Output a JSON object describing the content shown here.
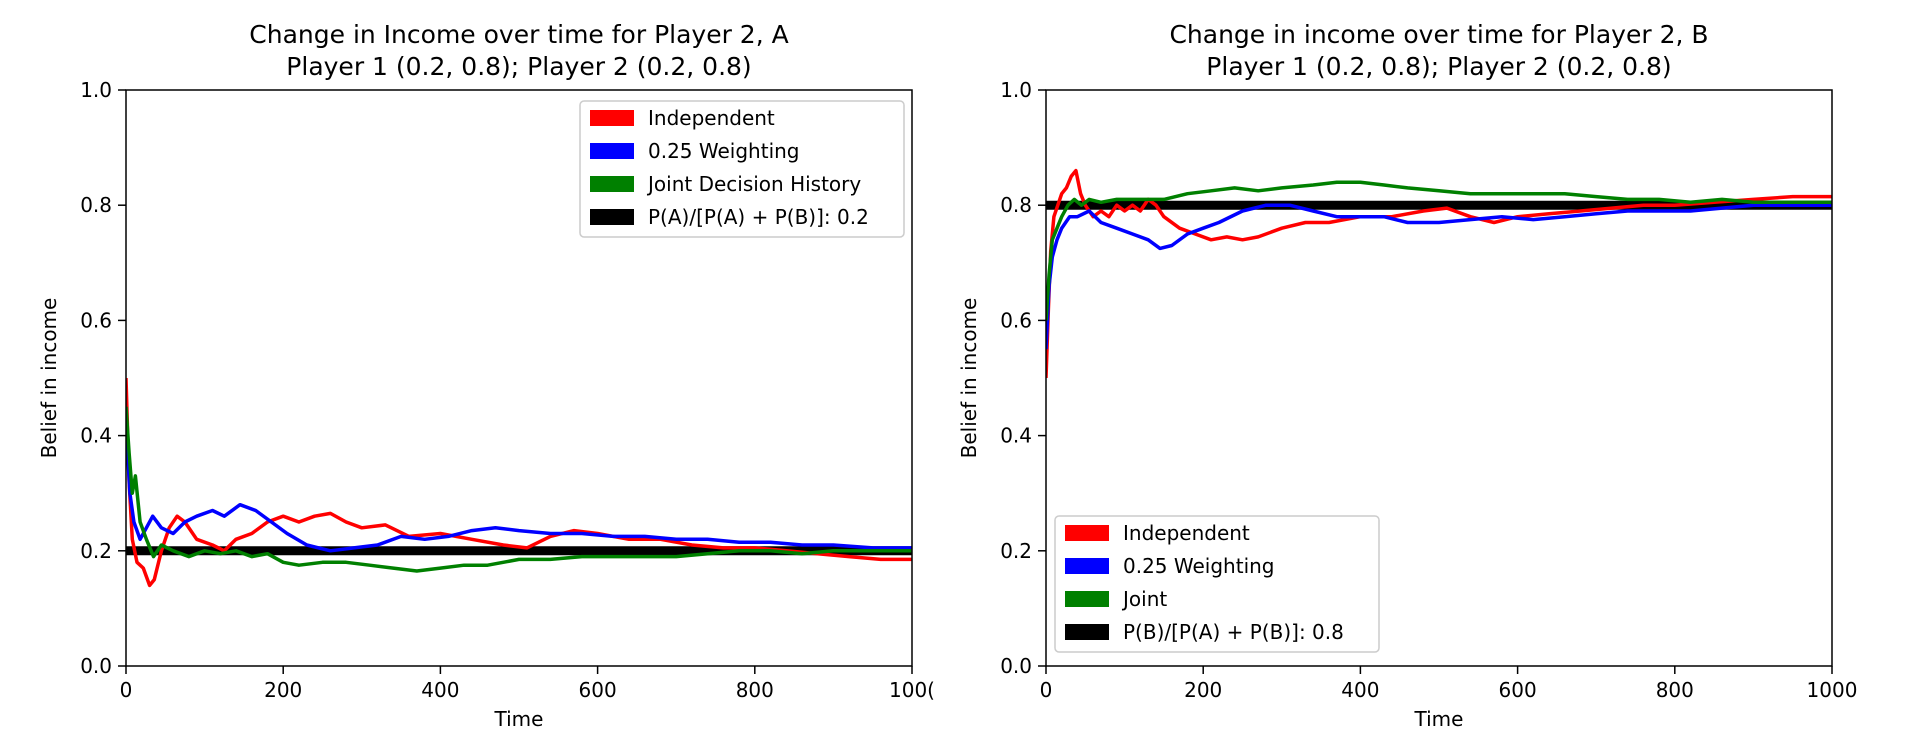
{
  "chart_data": [
    {
      "type": "line",
      "title": "Change in Income over time for Player 2, A",
      "subtitle": "Player 1 (0.2, 0.8); Player 2 (0.2, 0.8)",
      "xlabel": "Time",
      "ylabel": "Belief in income",
      "xlim": [
        0,
        1000
      ],
      "ylim": [
        0,
        1
      ],
      "xticks": [
        "0",
        "200",
        "400",
        "600",
        "800",
        "100("
      ],
      "yticks": [
        "0.0",
        "0.2",
        "0.4",
        "0.6",
        "0.8",
        "1.0"
      ],
      "legend_position": "top-right",
      "series": [
        {
          "name": "Independent",
          "color": "#ff0000",
          "points": [
            [
              0,
              0.5
            ],
            [
              4,
              0.32
            ],
            [
              8,
              0.22
            ],
            [
              14,
              0.18
            ],
            [
              22,
              0.17
            ],
            [
              30,
              0.14
            ],
            [
              36,
              0.15
            ],
            [
              45,
              0.2
            ],
            [
              55,
              0.24
            ],
            [
              65,
              0.26
            ],
            [
              75,
              0.25
            ],
            [
              90,
              0.22
            ],
            [
              110,
              0.21
            ],
            [
              125,
              0.2
            ],
            [
              140,
              0.22
            ],
            [
              160,
              0.23
            ],
            [
              180,
              0.25
            ],
            [
              200,
              0.26
            ],
            [
              220,
              0.25
            ],
            [
              240,
              0.26
            ],
            [
              260,
              0.265
            ],
            [
              280,
              0.25
            ],
            [
              300,
              0.24
            ],
            [
              330,
              0.245
            ],
            [
              360,
              0.225
            ],
            [
              400,
              0.23
            ],
            [
              440,
              0.22
            ],
            [
              480,
              0.21
            ],
            [
              510,
              0.205
            ],
            [
              540,
              0.225
            ],
            [
              570,
              0.235
            ],
            [
              600,
              0.23
            ],
            [
              640,
              0.22
            ],
            [
              680,
              0.22
            ],
            [
              720,
              0.21
            ],
            [
              760,
              0.205
            ],
            [
              800,
              0.205
            ],
            [
              840,
              0.2
            ],
            [
              880,
              0.195
            ],
            [
              920,
              0.19
            ],
            [
              960,
              0.185
            ],
            [
              1000,
              0.185
            ]
          ]
        },
        {
          "name": "0.25 Weighting",
          "color": "#0000ff",
          "points": [
            [
              0,
              0.42
            ],
            [
              5,
              0.3
            ],
            [
              10,
              0.25
            ],
            [
              18,
              0.22
            ],
            [
              26,
              0.24
            ],
            [
              34,
              0.26
            ],
            [
              45,
              0.24
            ],
            [
              60,
              0.23
            ],
            [
              75,
              0.25
            ],
            [
              90,
              0.26
            ],
            [
              110,
              0.27
            ],
            [
              125,
              0.26
            ],
            [
              145,
              0.28
            ],
            [
              165,
              0.27
            ],
            [
              185,
              0.25
            ],
            [
              205,
              0.23
            ],
            [
              230,
              0.21
            ],
            [
              260,
              0.2
            ],
            [
              290,
              0.205
            ],
            [
              320,
              0.21
            ],
            [
              350,
              0.225
            ],
            [
              380,
              0.22
            ],
            [
              410,
              0.225
            ],
            [
              440,
              0.235
            ],
            [
              470,
              0.24
            ],
            [
              500,
              0.235
            ],
            [
              540,
              0.23
            ],
            [
              580,
              0.23
            ],
            [
              620,
              0.225
            ],
            [
              660,
              0.225
            ],
            [
              700,
              0.22
            ],
            [
              740,
              0.22
            ],
            [
              780,
              0.215
            ],
            [
              820,
              0.215
            ],
            [
              860,
              0.21
            ],
            [
              900,
              0.21
            ],
            [
              950,
              0.205
            ],
            [
              1000,
              0.205
            ]
          ]
        },
        {
          "name": "Joint Decision History",
          "color": "#008000",
          "points": [
            [
              0,
              0.45
            ],
            [
              4,
              0.37
            ],
            [
              8,
              0.3
            ],
            [
              12,
              0.33
            ],
            [
              18,
              0.25
            ],
            [
              26,
              0.22
            ],
            [
              35,
              0.19
            ],
            [
              45,
              0.21
            ],
            [
              60,
              0.2
            ],
            [
              80,
              0.19
            ],
            [
              100,
              0.2
            ],
            [
              120,
              0.195
            ],
            [
              140,
              0.2
            ],
            [
              160,
              0.19
            ],
            [
              180,
              0.195
            ],
            [
              200,
              0.18
            ],
            [
              220,
              0.175
            ],
            [
              250,
              0.18
            ],
            [
              280,
              0.18
            ],
            [
              310,
              0.175
            ],
            [
              340,
              0.17
            ],
            [
              370,
              0.165
            ],
            [
              400,
              0.17
            ],
            [
              430,
              0.175
            ],
            [
              460,
              0.175
            ],
            [
              500,
              0.185
            ],
            [
              540,
              0.185
            ],
            [
              580,
              0.19
            ],
            [
              620,
              0.19
            ],
            [
              660,
              0.19
            ],
            [
              700,
              0.19
            ],
            [
              740,
              0.195
            ],
            [
              780,
              0.2
            ],
            [
              820,
              0.2
            ],
            [
              860,
              0.195
            ],
            [
              900,
              0.2
            ],
            [
              950,
              0.2
            ],
            [
              1000,
              0.2
            ]
          ]
        },
        {
          "name": "P(A)/[P(A) + P(B)]: 0.2",
          "color": "#000000",
          "points": [
            [
              0,
              0.2
            ],
            [
              1000,
              0.2
            ]
          ]
        }
      ]
    },
    {
      "type": "line",
      "title": "Change in income over time for Player 2, B",
      "subtitle": "Player 1 (0.2, 0.8); Player 2 (0.2, 0.8)",
      "xlabel": "Time",
      "ylabel": "Belief in income",
      "xlim": [
        0,
        1000
      ],
      "ylim": [
        0,
        1
      ],
      "xticks": [
        "0",
        "200",
        "400",
        "600",
        "800",
        "1000"
      ],
      "yticks": [
        "0.0",
        "0.2",
        "0.4",
        "0.6",
        "0.8",
        "1.0"
      ],
      "legend_position": "bottom-left",
      "series": [
        {
          "name": "Independent",
          "color": "#ff0000",
          "points": [
            [
              0,
              0.5
            ],
            [
              3,
              0.62
            ],
            [
              6,
              0.72
            ],
            [
              10,
              0.78
            ],
            [
              15,
              0.8
            ],
            [
              20,
              0.82
            ],
            [
              26,
              0.83
            ],
            [
              32,
              0.85
            ],
            [
              38,
              0.86
            ],
            [
              44,
              0.82
            ],
            [
              50,
              0.8
            ],
            [
              60,
              0.78
            ],
            [
              70,
              0.79
            ],
            [
              80,
              0.78
            ],
            [
              90,
              0.8
            ],
            [
              100,
              0.79
            ],
            [
              110,
              0.8
            ],
            [
              120,
              0.79
            ],
            [
              130,
              0.81
            ],
            [
              140,
              0.8
            ],
            [
              150,
              0.78
            ],
            [
              170,
              0.76
            ],
            [
              190,
              0.75
            ],
            [
              210,
              0.74
            ],
            [
              230,
              0.745
            ],
            [
              250,
              0.74
            ],
            [
              270,
              0.745
            ],
            [
              300,
              0.76
            ],
            [
              330,
              0.77
            ],
            [
              360,
              0.77
            ],
            [
              400,
              0.78
            ],
            [
              440,
              0.78
            ],
            [
              480,
              0.79
            ],
            [
              510,
              0.795
            ],
            [
              540,
              0.78
            ],
            [
              570,
              0.77
            ],
            [
              600,
              0.78
            ],
            [
              640,
              0.785
            ],
            [
              680,
              0.79
            ],
            [
              720,
              0.795
            ],
            [
              760,
              0.8
            ],
            [
              800,
              0.8
            ],
            [
              850,
              0.805
            ],
            [
              900,
              0.81
            ],
            [
              950,
              0.815
            ],
            [
              1000,
              0.815
            ]
          ]
        },
        {
          "name": "0.25 Weighting",
          "color": "#0000ff",
          "points": [
            [
              0,
              0.55
            ],
            [
              4,
              0.66
            ],
            [
              8,
              0.71
            ],
            [
              14,
              0.74
            ],
            [
              20,
              0.76
            ],
            [
              30,
              0.78
            ],
            [
              40,
              0.78
            ],
            [
              55,
              0.79
            ],
            [
              70,
              0.77
            ],
            [
              90,
              0.76
            ],
            [
              110,
              0.75
            ],
            [
              130,
              0.74
            ],
            [
              145,
              0.725
            ],
            [
              160,
              0.73
            ],
            [
              180,
              0.75
            ],
            [
              200,
              0.76
            ],
            [
              220,
              0.77
            ],
            [
              250,
              0.79
            ],
            [
              280,
              0.8
            ],
            [
              310,
              0.8
            ],
            [
              340,
              0.79
            ],
            [
              370,
              0.78
            ],
            [
              400,
              0.78
            ],
            [
              430,
              0.78
            ],
            [
              460,
              0.77
            ],
            [
              500,
              0.77
            ],
            [
              540,
              0.775
            ],
            [
              580,
              0.78
            ],
            [
              620,
              0.775
            ],
            [
              660,
              0.78
            ],
            [
              700,
              0.785
            ],
            [
              740,
              0.79
            ],
            [
              780,
              0.79
            ],
            [
              820,
              0.79
            ],
            [
              860,
              0.795
            ],
            [
              900,
              0.8
            ],
            [
              950,
              0.8
            ],
            [
              1000,
              0.8
            ]
          ]
        },
        {
          "name": "Joint",
          "color": "#008000",
          "points": [
            [
              0,
              0.6
            ],
            [
              4,
              0.68
            ],
            [
              8,
              0.74
            ],
            [
              14,
              0.76
            ],
            [
              20,
              0.78
            ],
            [
              28,
              0.8
            ],
            [
              36,
              0.81
            ],
            [
              45,
              0.8
            ],
            [
              55,
              0.81
            ],
            [
              70,
              0.805
            ],
            [
              90,
              0.81
            ],
            [
              110,
              0.81
            ],
            [
              130,
              0.81
            ],
            [
              150,
              0.81
            ],
            [
              180,
              0.82
            ],
            [
              210,
              0.825
            ],
            [
              240,
              0.83
            ],
            [
              270,
              0.825
            ],
            [
              300,
              0.83
            ],
            [
              340,
              0.835
            ],
            [
              370,
              0.84
            ],
            [
              400,
              0.84
            ],
            [
              430,
              0.835
            ],
            [
              460,
              0.83
            ],
            [
              500,
              0.825
            ],
            [
              540,
              0.82
            ],
            [
              580,
              0.82
            ],
            [
              620,
              0.82
            ],
            [
              660,
              0.82
            ],
            [
              700,
              0.815
            ],
            [
              740,
              0.81
            ],
            [
              780,
              0.81
            ],
            [
              820,
              0.805
            ],
            [
              860,
              0.81
            ],
            [
              900,
              0.805
            ],
            [
              950,
              0.805
            ],
            [
              1000,
              0.805
            ]
          ]
        },
        {
          "name": "P(B)/[P(A) + P(B)]: 0.8",
          "color": "#000000",
          "points": [
            [
              0,
              0.8
            ],
            [
              1000,
              0.8
            ]
          ]
        }
      ]
    }
  ]
}
